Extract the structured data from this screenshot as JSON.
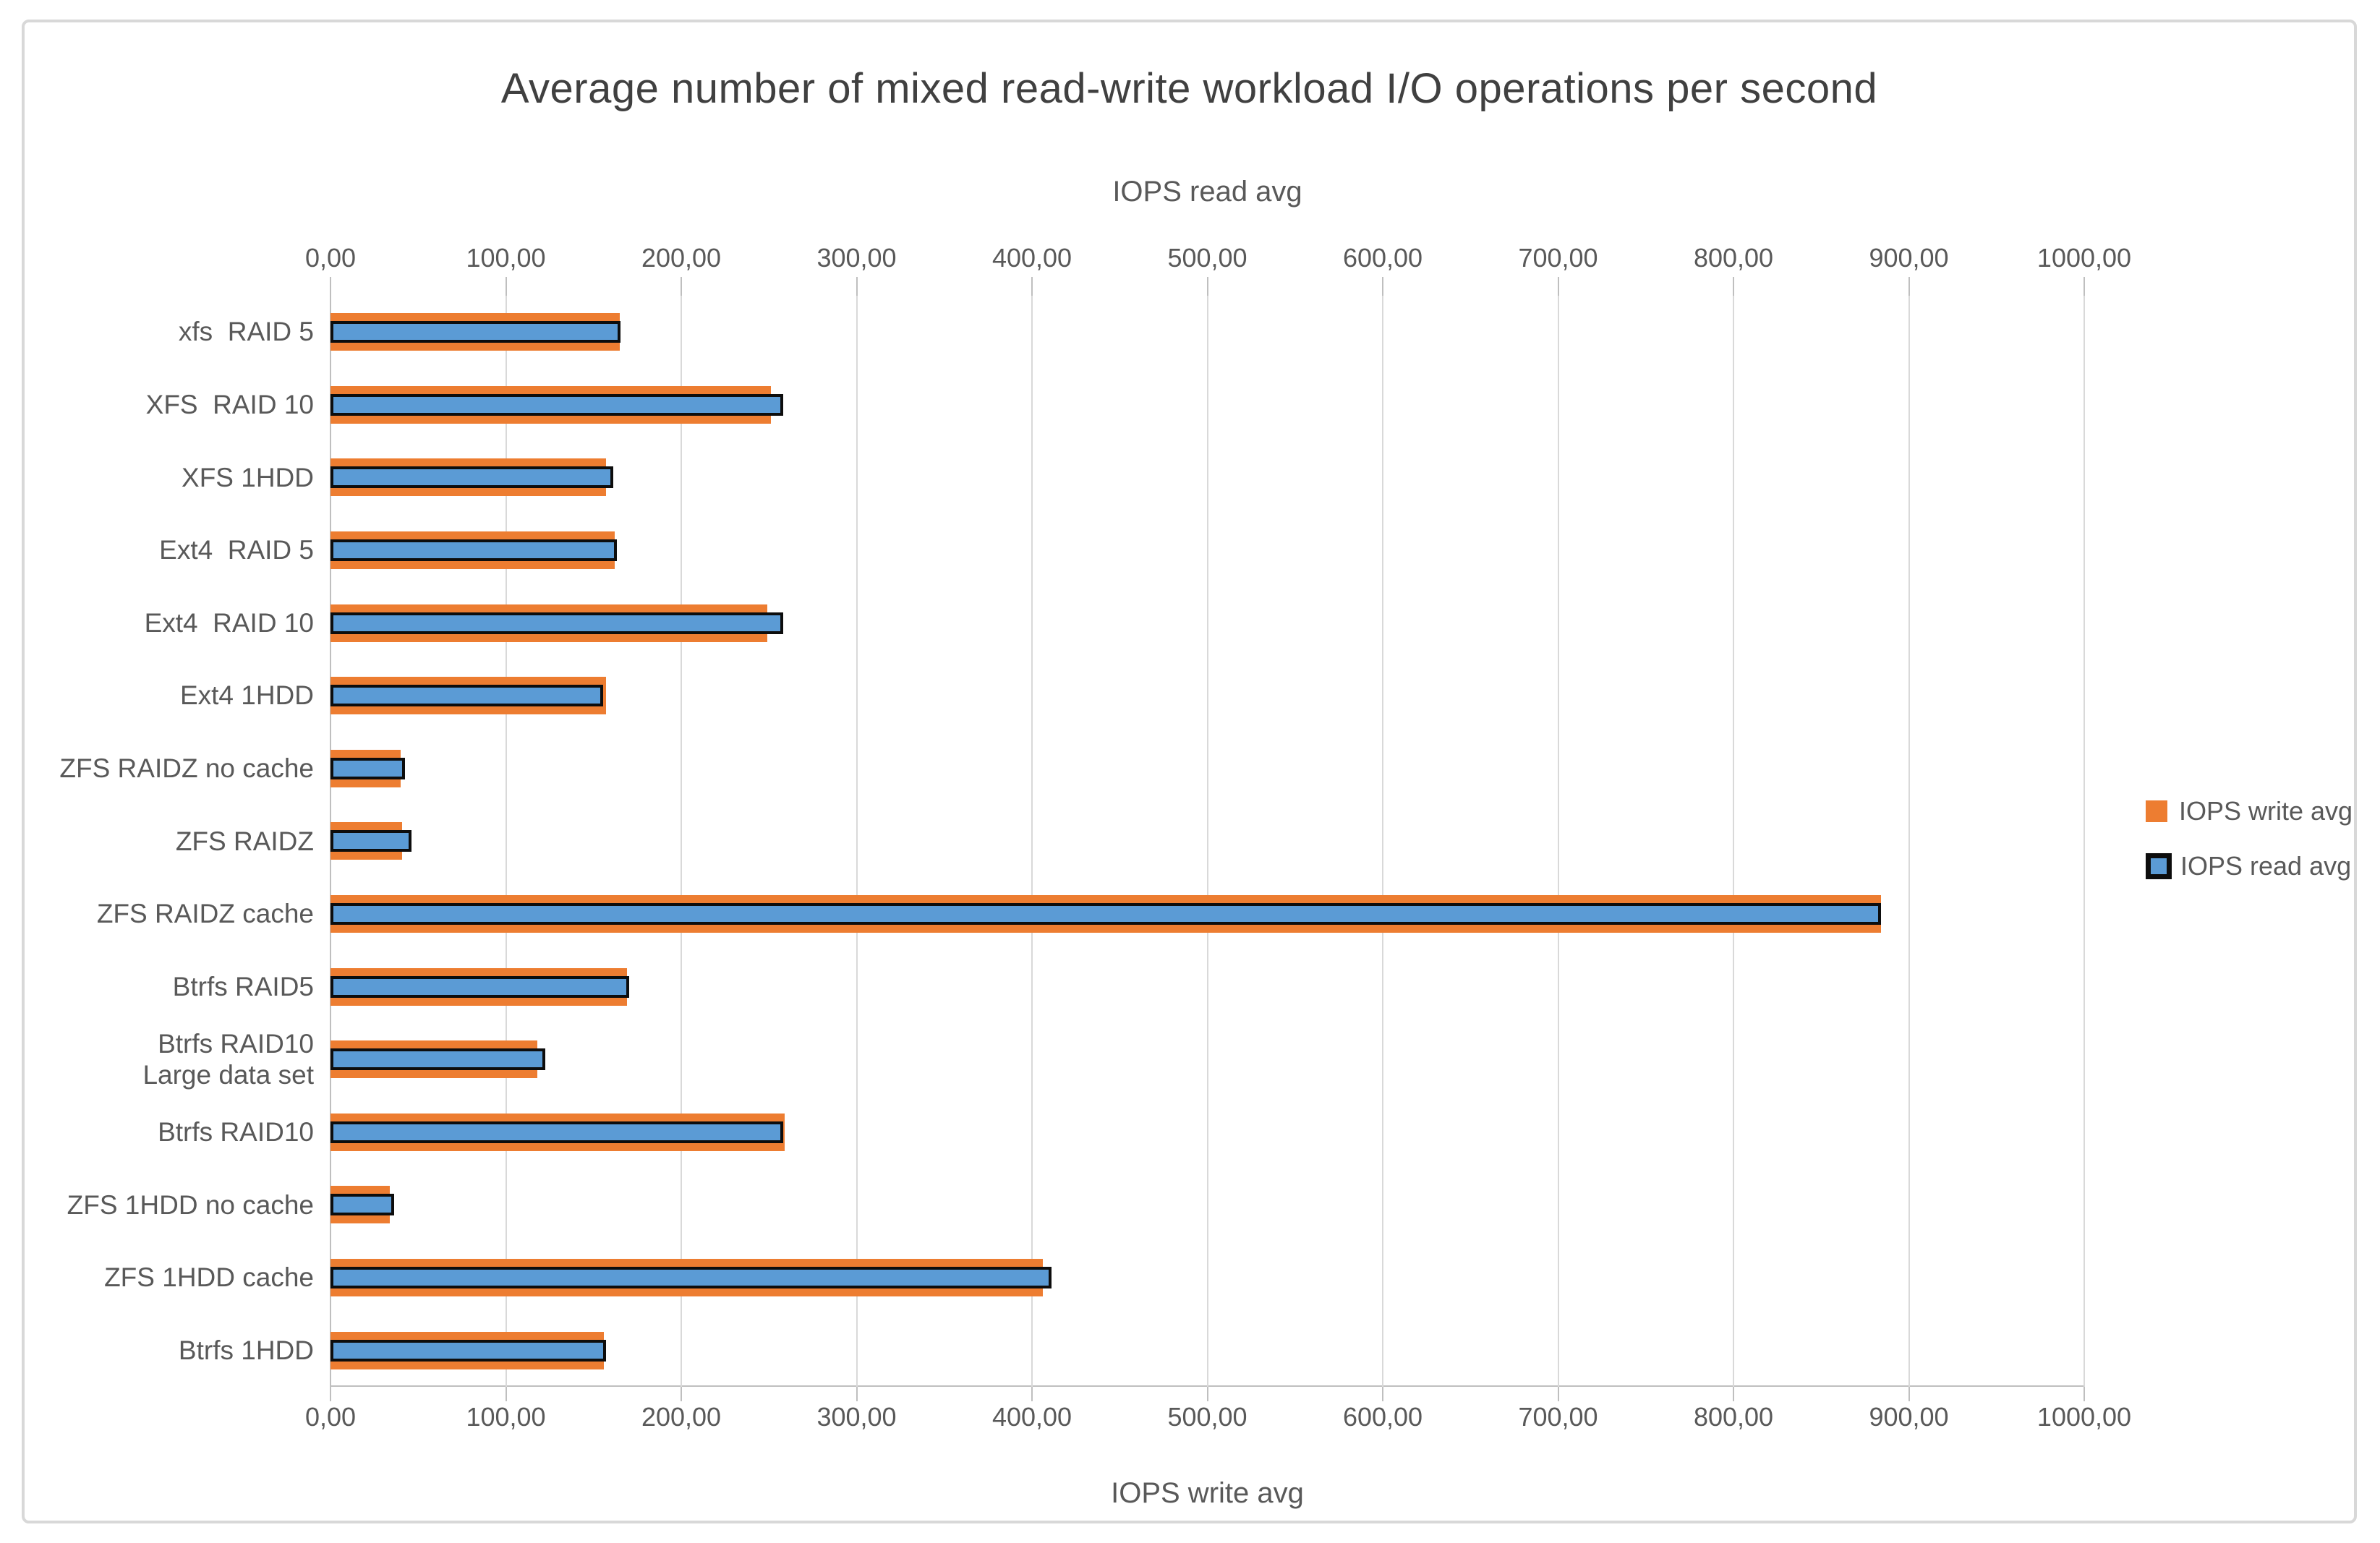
{
  "page": {
    "title": "Average number of mixed read-write workload I/O operations per second",
    "top_axis_label": "IOPS read avg",
    "bottom_axis_label": "IOPS write avg"
  },
  "colors": {
    "write_bar": "#ED7D31",
    "read_bar": "#5B9BD5",
    "read_bar_border": "#0d0d0d",
    "gridline": "#d9d9d9",
    "axis_line": "#bfbfbf",
    "text_gray": "#595959",
    "title_gray": "#404040"
  },
  "chart_data": {
    "type": "bar",
    "orientation": "horizontal",
    "title": "Average number of mixed read-write workload I/O operations per second",
    "categories": [
      "xfs  RAID 5",
      "XFS  RAID 10",
      "XFS 1HDD",
      "Ext4  RAID 5",
      "Ext4  RAID 10",
      "Ext4 1HDD",
      "ZFS RAIDZ no cache",
      "ZFS RAIDZ",
      "ZFS RAIDZ cache",
      "Btrfs RAID5",
      "Btrfs RAID10\nLarge data set",
      "Btrfs RAID10",
      "ZFS 1HDD no cache",
      "ZFS 1HDD cache",
      "Btrfs 1HDD"
    ],
    "series": [
      {
        "name": "IOPS write avg",
        "axis": "bottom",
        "color": "#ED7D31",
        "values": [
          165,
          251,
          157,
          162,
          249,
          157,
          40,
          41,
          884,
          169,
          118,
          259,
          34,
          406,
          156
        ]
      },
      {
        "name": "IOPS read avg",
        "axis": "top",
        "color": "#5B9BD5",
        "border_color": "#0d0d0d",
        "values": [
          162,
          255,
          158,
          160,
          255,
          152,
          39,
          43,
          881,
          167,
          119,
          255,
          33,
          408,
          154
        ]
      }
    ],
    "x_axis": {
      "min": 0,
      "max": 1000,
      "step": 100,
      "top_label": "IOPS read avg",
      "bottom_label": "IOPS write avg",
      "tick_values": [
        0,
        100,
        200,
        300,
        400,
        500,
        600,
        700,
        800,
        900,
        1000
      ],
      "tick_labels": [
        "0,00",
        "100,00",
        "200,00",
        "300,00",
        "400,00",
        "500,00",
        "600,00",
        "700,00",
        "800,00",
        "900,00",
        "1000,00"
      ]
    },
    "grid": true,
    "legend_position": "right"
  },
  "legend": {
    "items": [
      {
        "label": "IOPS write avg",
        "swatch": "write-swatch-icon"
      },
      {
        "label": "IOPS read avg",
        "swatch": "read-swatch-icon"
      }
    ]
  }
}
